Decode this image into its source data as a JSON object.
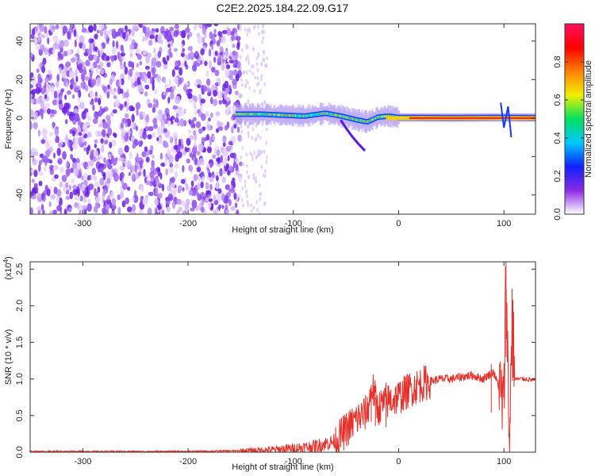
{
  "title": "C2E2.2025.184.22.09.G17",
  "chart_data": [
    {
      "type": "heatmap",
      "xlabel": "Height of straight line (km)",
      "ylabel": "Frequency (Hz)",
      "xlim": [
        -350,
        130
      ],
      "ylim": [
        -50,
        49
      ],
      "xticks": [
        "-300",
        "-200",
        "-100",
        "0",
        "100"
      ],
      "yticks": [
        "-40",
        "-20",
        "0",
        "20",
        "40"
      ],
      "colorbar": {
        "label": "Normalized spectral amplitude",
        "range": [
          0.0,
          1.0
        ],
        "ticks": [
          "0.0",
          "0.2",
          "0.4",
          "0.6",
          "0.8"
        ],
        "colors": [
          "#ffffff",
          "#8a2be2",
          "#1020ff",
          "#00c8ff",
          "#00e060",
          "#f0f000",
          "#ff8000",
          "#ff0000",
          "#ff1060"
        ]
      },
      "regions": [
        {
          "description": "noise",
          "x": [
            -350,
            -150
          ],
          "freq": [
            -50,
            49
          ],
          "amplitude": 0.15
        },
        {
          "description": "fading noise",
          "x": [
            -150,
            -125
          ],
          "freq": [
            -50,
            49
          ],
          "amplitude": 0.05
        },
        {
          "description": "signal",
          "x": [
            -155,
            130
          ],
          "center_freq": 0,
          "amplitude": 0.9
        }
      ],
      "signal_track": [
        {
          "x": -155,
          "f": 2.0
        },
        {
          "x": -130,
          "f": 2.0
        },
        {
          "x": -110,
          "f": 1.5
        },
        {
          "x": -90,
          "f": 1.0
        },
        {
          "x": -70,
          "f": 2.5
        },
        {
          "x": -55,
          "f": 1.0
        },
        {
          "x": -40,
          "f": -1.0
        },
        {
          "x": -30,
          "f": -2.0
        },
        {
          "x": -20,
          "f": 0.5
        },
        {
          "x": -10,
          "f": 1.0
        },
        {
          "x": 0,
          "f": 0.3
        },
        {
          "x": 50,
          "f": 0.2
        },
        {
          "x": 100,
          "f": 0.3
        },
        {
          "x": 130,
          "f": 0.2
        }
      ]
    },
    {
      "type": "line",
      "xlabel": "Height of straight line (km)",
      "ylabel": "SNR (10 * v/v)",
      "yscale_label": "(x10",
      "yscale_exp": "4",
      "xlim": [
        -350,
        130
      ],
      "ylim": [
        0,
        2.6
      ],
      "xticks": [
        "-300",
        "-200",
        "-100",
        "0",
        "100"
      ],
      "yticks": [
        "0.0",
        "0.5",
        "1.0",
        "1.5",
        "2.0",
        "2.5"
      ],
      "series": [
        {
          "color": "#e8302a",
          "points": [
            {
              "x": -350,
              "y": 0.01
            },
            {
              "x": -300,
              "y": 0.01
            },
            {
              "x": -250,
              "y": 0.01
            },
            {
              "x": -200,
              "y": 0.01
            },
            {
              "x": -150,
              "y": 0.02
            },
            {
              "x": -120,
              "y": 0.03
            },
            {
              "x": -100,
              "y": 0.05
            },
            {
              "x": -80,
              "y": 0.08
            },
            {
              "x": -60,
              "y": 0.15
            },
            {
              "x": -50,
              "y": 0.3
            },
            {
              "x": -40,
              "y": 0.45
            },
            {
              "x": -30,
              "y": 0.55
            },
            {
              "x": -25,
              "y": 0.9
            },
            {
              "x": -20,
              "y": 0.6
            },
            {
              "x": -10,
              "y": 0.7
            },
            {
              "x": 0,
              "y": 0.75
            },
            {
              "x": 10,
              "y": 0.85
            },
            {
              "x": 20,
              "y": 0.92
            },
            {
              "x": 30,
              "y": 0.97
            },
            {
              "x": 40,
              "y": 1.0
            },
            {
              "x": 50,
              "y": 1.0
            },
            {
              "x": 60,
              "y": 1.03
            },
            {
              "x": 70,
              "y": 1.05
            },
            {
              "x": 80,
              "y": 1.0
            },
            {
              "x": 90,
              "y": 1.1
            },
            {
              "x": 95,
              "y": 0.9
            },
            {
              "x": 100,
              "y": 0.6
            },
            {
              "x": 102,
              "y": 2.6
            },
            {
              "x": 105,
              "y": 0.1
            },
            {
              "x": 108,
              "y": 1.95
            },
            {
              "x": 110,
              "y": 1.0
            },
            {
              "x": 120,
              "y": 1.0
            },
            {
              "x": 130,
              "y": 0.98
            }
          ]
        }
      ]
    }
  ]
}
